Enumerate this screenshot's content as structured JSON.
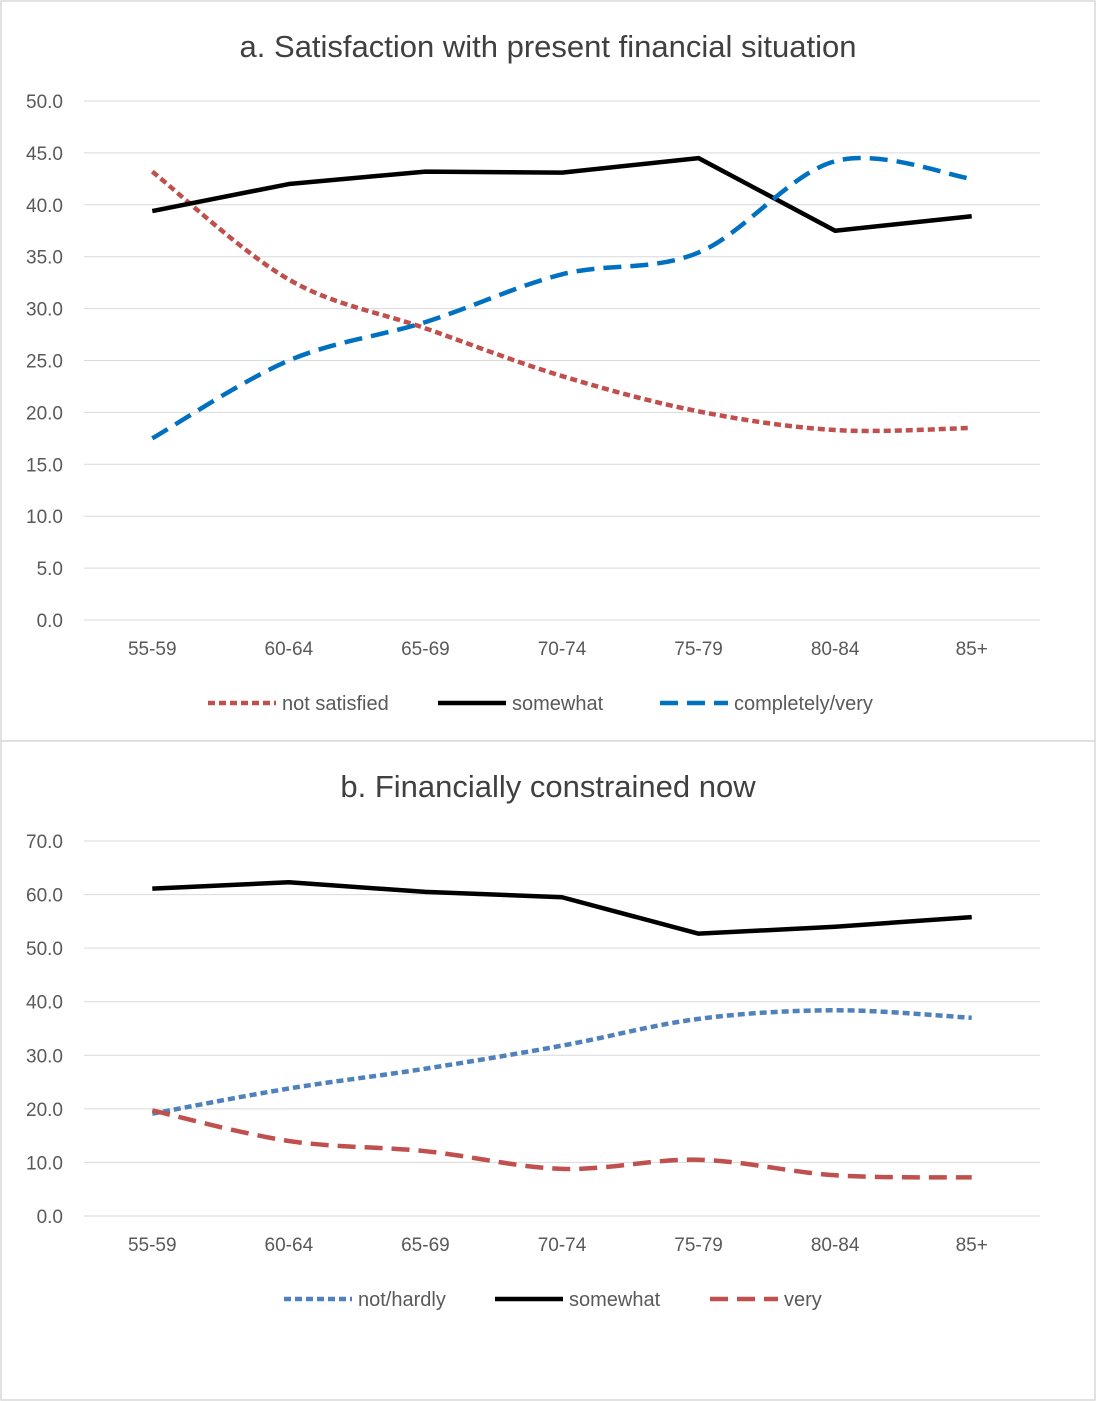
{
  "chart_data": [
    {
      "type": "line",
      "title": "a. Satisfaction with present financial situation",
      "xlabel": "",
      "ylabel": "",
      "categories": [
        "55-59",
        "60-64",
        "65-69",
        "70-74",
        "75-79",
        "80-84",
        "85+"
      ],
      "ylim": [
        0,
        50
      ],
      "yticks": [
        "0.0",
        "5.0",
        "10.0",
        "15.0",
        "20.0",
        "25.0",
        "30.0",
        "35.0",
        "40.0",
        "45.0",
        "50.0"
      ],
      "grid": true,
      "legend_position": "bottom",
      "series": [
        {
          "name": "not satisfied",
          "values": [
            43.2,
            32.8,
            28.1,
            23.5,
            20.1,
            18.3,
            18.5
          ],
          "color": "#c0504d",
          "style": "dotted"
        },
        {
          "name": "somewhat",
          "values": [
            39.4,
            42.0,
            43.2,
            43.1,
            44.5,
            37.5,
            38.9
          ],
          "color": "#000000",
          "style": "solid"
        },
        {
          "name": "completely/very",
          "values": [
            17.5,
            25.0,
            28.7,
            33.3,
            35.4,
            44.2,
            42.5
          ],
          "color": "#0070c0",
          "style": "dashed"
        }
      ]
    },
    {
      "type": "line",
      "title": "b. Financially constrained now",
      "xlabel": "",
      "ylabel": "",
      "categories": [
        "55-59",
        "60-64",
        "65-69",
        "70-74",
        "75-79",
        "80-84",
        "85+"
      ],
      "ylim": [
        0,
        70
      ],
      "yticks": [
        "0.0",
        "10.0",
        "20.0",
        "30.0",
        "40.0",
        "50.0",
        "60.0",
        "70.0"
      ],
      "grid": true,
      "legend_position": "bottom",
      "series": [
        {
          "name": "not/hardly",
          "values": [
            19.1,
            23.8,
            27.5,
            31.8,
            36.8,
            38.4,
            37.0
          ],
          "color": "#4f81bd",
          "style": "dotted"
        },
        {
          "name": "somewhat",
          "values": [
            61.1,
            62.3,
            60.5,
            59.5,
            52.7,
            54.0,
            55.8
          ],
          "color": "#000000",
          "style": "solid"
        },
        {
          "name": "very",
          "values": [
            19.7,
            14.0,
            12.1,
            8.8,
            10.5,
            7.6,
            7.2
          ],
          "color": "#c0504d",
          "style": "dashed"
        }
      ]
    }
  ]
}
